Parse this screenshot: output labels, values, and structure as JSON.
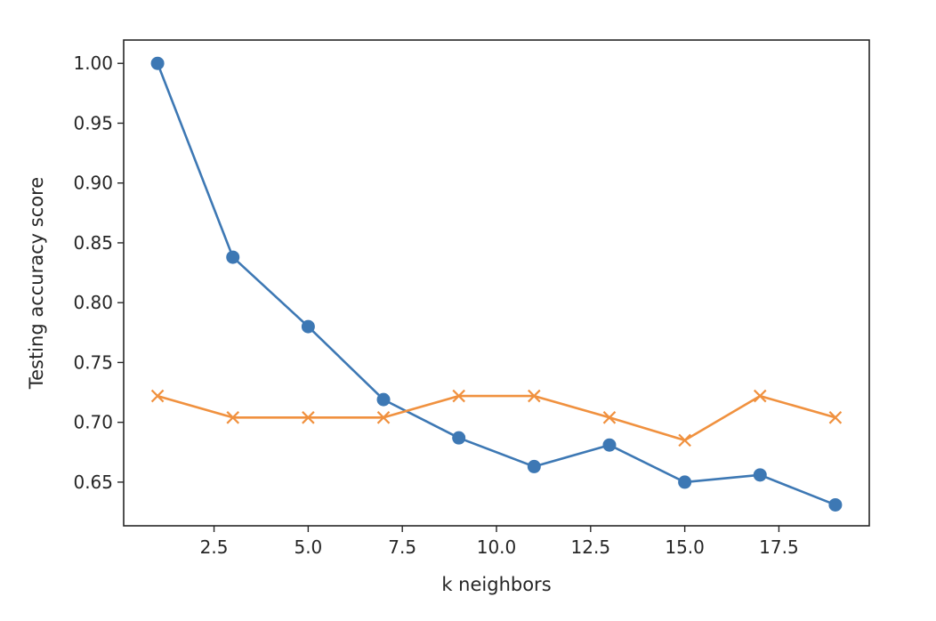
{
  "chart_data": {
    "type": "line",
    "title": "",
    "xlabel": "k neighbors",
    "ylabel": "Testing accuracy score",
    "xlim": [
      0.1,
      19.9
    ],
    "ylim": [
      0.6135,
      1.0195
    ],
    "x_ticks": [
      2.5,
      5.0,
      7.5,
      10.0,
      12.5,
      15.0,
      17.5
    ],
    "x_tick_labels": [
      "2.5",
      "5.0",
      "7.5",
      "10.0",
      "12.5",
      "15.0",
      "17.5"
    ],
    "y_ticks": [
      0.65,
      0.7,
      0.75,
      0.8,
      0.85,
      0.9,
      0.95,
      1.0
    ],
    "y_tick_labels": [
      "0.65",
      "0.70",
      "0.75",
      "0.80",
      "0.85",
      "0.90",
      "0.95",
      "1.00"
    ],
    "grid": false,
    "x": [
      1,
      3,
      5,
      7,
      9,
      11,
      13,
      15,
      17,
      19
    ],
    "series": [
      {
        "values": [
          1.0,
          0.838,
          0.78,
          0.719,
          0.687,
          0.663,
          0.681,
          0.65,
          0.656,
          0.631
        ],
        "color": "#3d78b4",
        "marker": "circle"
      },
      {
        "values": [
          0.722,
          0.704,
          0.704,
          0.704,
          0.722,
          0.722,
          0.704,
          0.685,
          0.722,
          0.704
        ],
        "color": "#f0913f",
        "marker": "x"
      }
    ]
  }
}
